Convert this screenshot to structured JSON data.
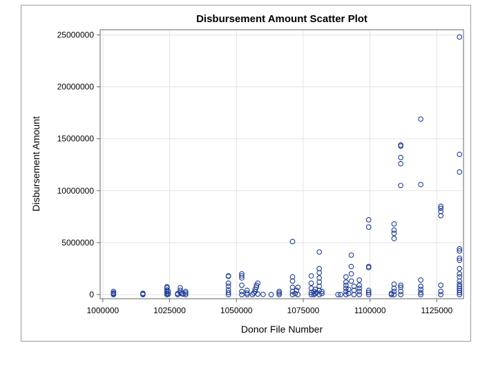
{
  "chart_data": {
    "type": "scatter",
    "title": "Disbursement Amount Scatter Plot",
    "xlabel": "Donor File Number",
    "ylabel": "Disbursement Amount",
    "xlim": [
      999000,
      1135000
    ],
    "ylim": [
      -400000,
      25500000
    ],
    "xticks": [
      1000000,
      1025000,
      1050000,
      1075000,
      1100000,
      1125000
    ],
    "yticks": [
      0,
      5000000,
      10000000,
      15000000,
      20000000,
      25000000
    ],
    "grid": true,
    "marker": "open-circle",
    "marker_color": "#1f3d99",
    "series": [
      {
        "points": [
          [
            1004000,
            0
          ],
          [
            1004000,
            80000
          ],
          [
            1004000,
            150000
          ],
          [
            1004000,
            300000
          ],
          [
            1015000,
            0
          ],
          [
            1015000,
            60000
          ],
          [
            1015000,
            120000
          ],
          [
            1024000,
            0
          ],
          [
            1024000,
            100000
          ],
          [
            1024000,
            250000
          ],
          [
            1024000,
            450000
          ],
          [
            1024000,
            650000
          ],
          [
            1024000,
            750000
          ],
          [
            1024500,
            50000
          ],
          [
            1024500,
            300000
          ],
          [
            1028000,
            0
          ],
          [
            1028000,
            100000
          ],
          [
            1029000,
            200000
          ],
          [
            1029000,
            400000
          ],
          [
            1029000,
            650000
          ],
          [
            1029500,
            100000
          ],
          [
            1030000,
            50000
          ],
          [
            1031000,
            0
          ],
          [
            1031000,
            150000
          ],
          [
            1031000,
            300000
          ],
          [
            1047000,
            0
          ],
          [
            1047000,
            200000
          ],
          [
            1047000,
            450000
          ],
          [
            1047000,
            800000
          ],
          [
            1047000,
            1100000
          ],
          [
            1047000,
            1800000
          ],
          [
            1047000,
            1750000
          ],
          [
            1052000,
            0
          ],
          [
            1052000,
            300000
          ],
          [
            1052000,
            900000
          ],
          [
            1052000,
            1600000
          ],
          [
            1052000,
            1800000
          ],
          [
            1052000,
            2000000
          ],
          [
            1054000,
            0
          ],
          [
            1054000,
            150000
          ],
          [
            1054000,
            400000
          ],
          [
            1056000,
            0
          ],
          [
            1056500,
            150000
          ],
          [
            1057000,
            300000
          ],
          [
            1057000,
            500000
          ],
          [
            1057500,
            700000
          ],
          [
            1057500,
            900000
          ],
          [
            1058000,
            1100000
          ],
          [
            1058000,
            50000
          ],
          [
            1060000,
            20000
          ],
          [
            1063000,
            0
          ],
          [
            1066000,
            0
          ],
          [
            1066000,
            150000
          ],
          [
            1066000,
            300000
          ],
          [
            1071000,
            0
          ],
          [
            1071000,
            300000
          ],
          [
            1071000,
            700000
          ],
          [
            1071000,
            1300000
          ],
          [
            1071000,
            1700000
          ],
          [
            1071000,
            5100000
          ],
          [
            1072000,
            100000
          ],
          [
            1072500,
            400000
          ],
          [
            1073000,
            0
          ],
          [
            1073000,
            700000
          ],
          [
            1078000,
            0
          ],
          [
            1078000,
            200000
          ],
          [
            1078000,
            600000
          ],
          [
            1078000,
            1100000
          ],
          [
            1078000,
            1800000
          ],
          [
            1079000,
            0
          ],
          [
            1079000,
            300000
          ],
          [
            1079500,
            100000
          ],
          [
            1079500,
            500000
          ],
          [
            1080000,
            200000
          ],
          [
            1081000,
            0
          ],
          [
            1081000,
            400000
          ],
          [
            1081000,
            800000
          ],
          [
            1081000,
            1200000
          ],
          [
            1081000,
            1600000
          ],
          [
            1081000,
            2100000
          ],
          [
            1081000,
            2500000
          ],
          [
            1081000,
            4100000
          ],
          [
            1082000,
            100000
          ],
          [
            1082000,
            300000
          ],
          [
            1088000,
            0
          ],
          [
            1089000,
            0
          ],
          [
            1091000,
            0
          ],
          [
            1091000,
            300000
          ],
          [
            1091000,
            600000
          ],
          [
            1091000,
            900000
          ],
          [
            1091000,
            1200000
          ],
          [
            1091000,
            1700000
          ],
          [
            1092000,
            100000
          ],
          [
            1092000,
            500000
          ],
          [
            1093000,
            1300000
          ],
          [
            1093000,
            2000000
          ],
          [
            1093000,
            2700000
          ],
          [
            1093000,
            3800000
          ],
          [
            1094000,
            0
          ],
          [
            1094000,
            400000
          ],
          [
            1094000,
            800000
          ],
          [
            1096000,
            0
          ],
          [
            1096000,
            300000
          ],
          [
            1096000,
            600000
          ],
          [
            1096000,
            900000
          ],
          [
            1096000,
            1400000
          ],
          [
            1099500,
            0
          ],
          [
            1099500,
            200000
          ],
          [
            1099500,
            400000
          ],
          [
            1099500,
            2600000
          ],
          [
            1099500,
            2700000
          ],
          [
            1099500,
            6500000
          ],
          [
            1099500,
            7200000
          ],
          [
            1108000,
            0
          ],
          [
            1108000,
            100000
          ],
          [
            1109000,
            0
          ],
          [
            1109000,
            300000
          ],
          [
            1109000,
            600000
          ],
          [
            1109000,
            1000000
          ],
          [
            1109000,
            5400000
          ],
          [
            1109000,
            5900000
          ],
          [
            1109000,
            6200000
          ],
          [
            1109000,
            6800000
          ],
          [
            1111500,
            0
          ],
          [
            1111500,
            300000
          ],
          [
            1111500,
            700000
          ],
          [
            1111500,
            900000
          ],
          [
            1111500,
            10500000
          ],
          [
            1111500,
            12600000
          ],
          [
            1111500,
            13200000
          ],
          [
            1111500,
            14300000
          ],
          [
            1111500,
            14400000
          ],
          [
            1119000,
            0
          ],
          [
            1119000,
            200000
          ],
          [
            1119000,
            500000
          ],
          [
            1119000,
            800000
          ],
          [
            1119000,
            1400000
          ],
          [
            1119000,
            10600000
          ],
          [
            1119000,
            16900000
          ],
          [
            1126500,
            0
          ],
          [
            1126500,
            300000
          ],
          [
            1126500,
            900000
          ],
          [
            1126500,
            7600000
          ],
          [
            1126500,
            8000000
          ],
          [
            1126500,
            8300000
          ],
          [
            1126500,
            8500000
          ],
          [
            1133500,
            0
          ],
          [
            1133500,
            200000
          ],
          [
            1133500,
            400000
          ],
          [
            1133500,
            600000
          ],
          [
            1133500,
            800000
          ],
          [
            1133500,
            1000000
          ],
          [
            1133500,
            1300000
          ],
          [
            1133500,
            1700000
          ],
          [
            1133500,
            2000000
          ],
          [
            1133500,
            2500000
          ],
          [
            1133500,
            3300000
          ],
          [
            1133500,
            3500000
          ],
          [
            1133500,
            4200000
          ],
          [
            1133500,
            4400000
          ],
          [
            1133500,
            11800000
          ],
          [
            1133500,
            13500000
          ],
          [
            1133500,
            24800000
          ]
        ]
      }
    ]
  }
}
